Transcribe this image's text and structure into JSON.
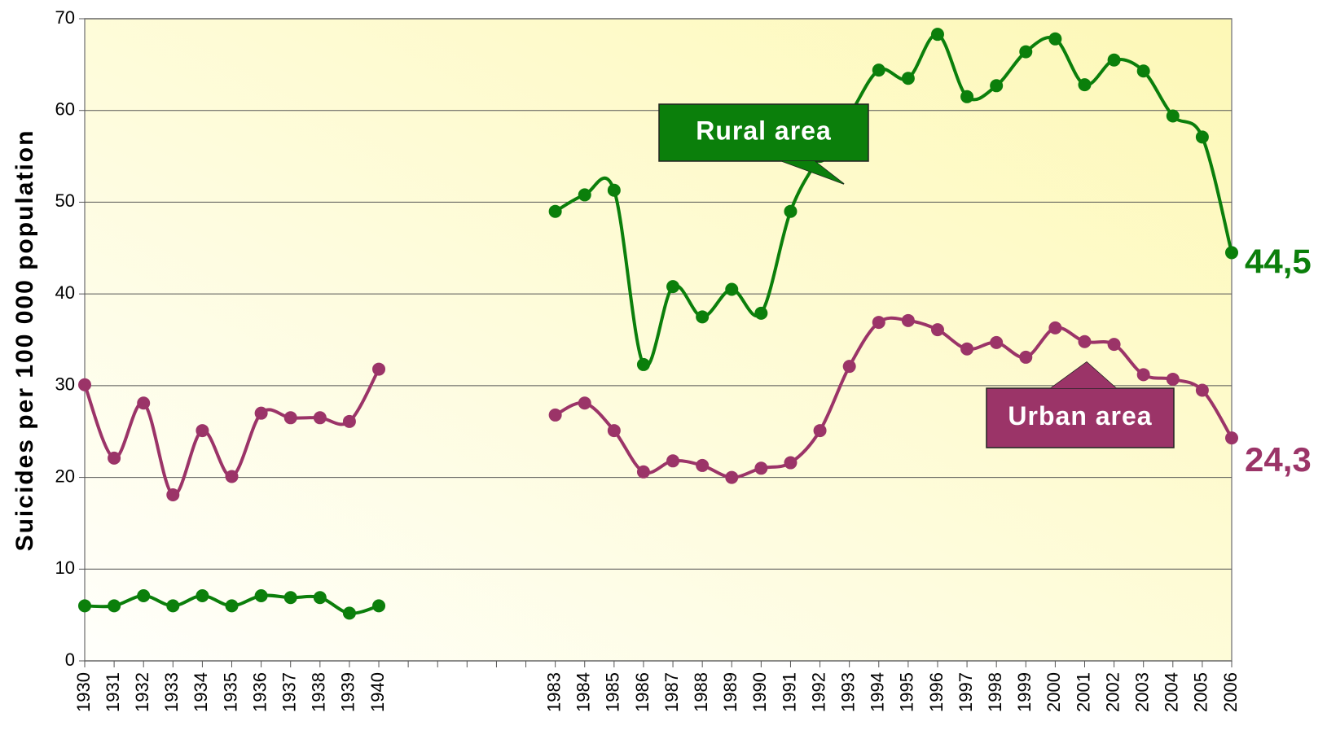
{
  "chart_data": {
    "type": "line",
    "y_axis_label": "Suicides per 100 000 population",
    "categories": [
      "1930",
      "1931",
      "1932",
      "1933",
      "1934",
      "1935",
      "1936",
      "1937",
      "1938",
      "1939",
      "1940",
      null,
      null,
      null,
      null,
      null,
      "1983",
      "1984",
      "1985",
      "1986",
      "1987",
      "1988",
      "1989",
      "1990",
      "1991",
      "1992",
      "1993",
      "1994",
      "1995",
      "1996",
      "1997",
      "1998",
      "1999",
      "2000",
      "2001",
      "2002",
      "2003",
      "2004",
      "2005",
      "2006"
    ],
    "series": [
      {
        "name": "Rural area",
        "color": "#0b7f0b",
        "values": [
          6,
          6,
          7.1,
          6,
          7.1,
          6,
          7.1,
          6.9,
          6.9,
          5.2,
          6,
          null,
          null,
          null,
          null,
          null,
          49,
          50.8,
          51.3,
          32.3,
          40.8,
          37.5,
          40.5,
          37.9,
          49,
          55,
          59.5,
          64.4,
          63.5,
          68.3,
          61.5,
          62.7,
          66.4,
          67.8,
          62.8,
          65.5,
          64.3,
          59.4,
          57.1,
          44.5
        ],
        "value_labels": [
          null,
          null,
          null,
          null,
          null,
          null,
          null,
          null,
          null,
          null,
          null,
          null,
          null,
          null,
          null,
          null,
          null,
          null,
          null,
          null,
          null,
          null,
          null,
          null,
          null,
          null,
          null,
          null,
          null,
          null,
          null,
          null,
          null,
          null,
          null,
          null,
          null,
          null,
          null,
          "44,5"
        ]
      },
      {
        "name": "Urban area",
        "color": "#9b3468",
        "values": [
          30.1,
          22.1,
          28.1,
          18.1,
          25.1,
          20.1,
          27,
          26.5,
          26.5,
          26.1,
          31.8,
          null,
          null,
          null,
          null,
          null,
          26.8,
          28.1,
          25.1,
          20.6,
          21.8,
          21.3,
          20,
          21,
          21.6,
          25.1,
          32.1,
          36.9,
          37.1,
          36.1,
          34,
          34.7,
          33.1,
          36.3,
          34.8,
          34.5,
          31.2,
          30.7,
          29.5,
          24.3
        ],
        "value_labels": [
          null,
          null,
          null,
          null,
          null,
          null,
          null,
          null,
          null,
          null,
          null,
          null,
          null,
          null,
          null,
          null,
          null,
          null,
          null,
          null,
          null,
          null,
          null,
          null,
          null,
          null,
          null,
          null,
          null,
          null,
          null,
          null,
          null,
          null,
          null,
          null,
          null,
          null,
          null,
          "24,3"
        ]
      }
    ],
    "ylim": [
      0,
      70
    ],
    "yticks": [
      0,
      10,
      20,
      30,
      40,
      50,
      60,
      70
    ],
    "grid": true
  }
}
